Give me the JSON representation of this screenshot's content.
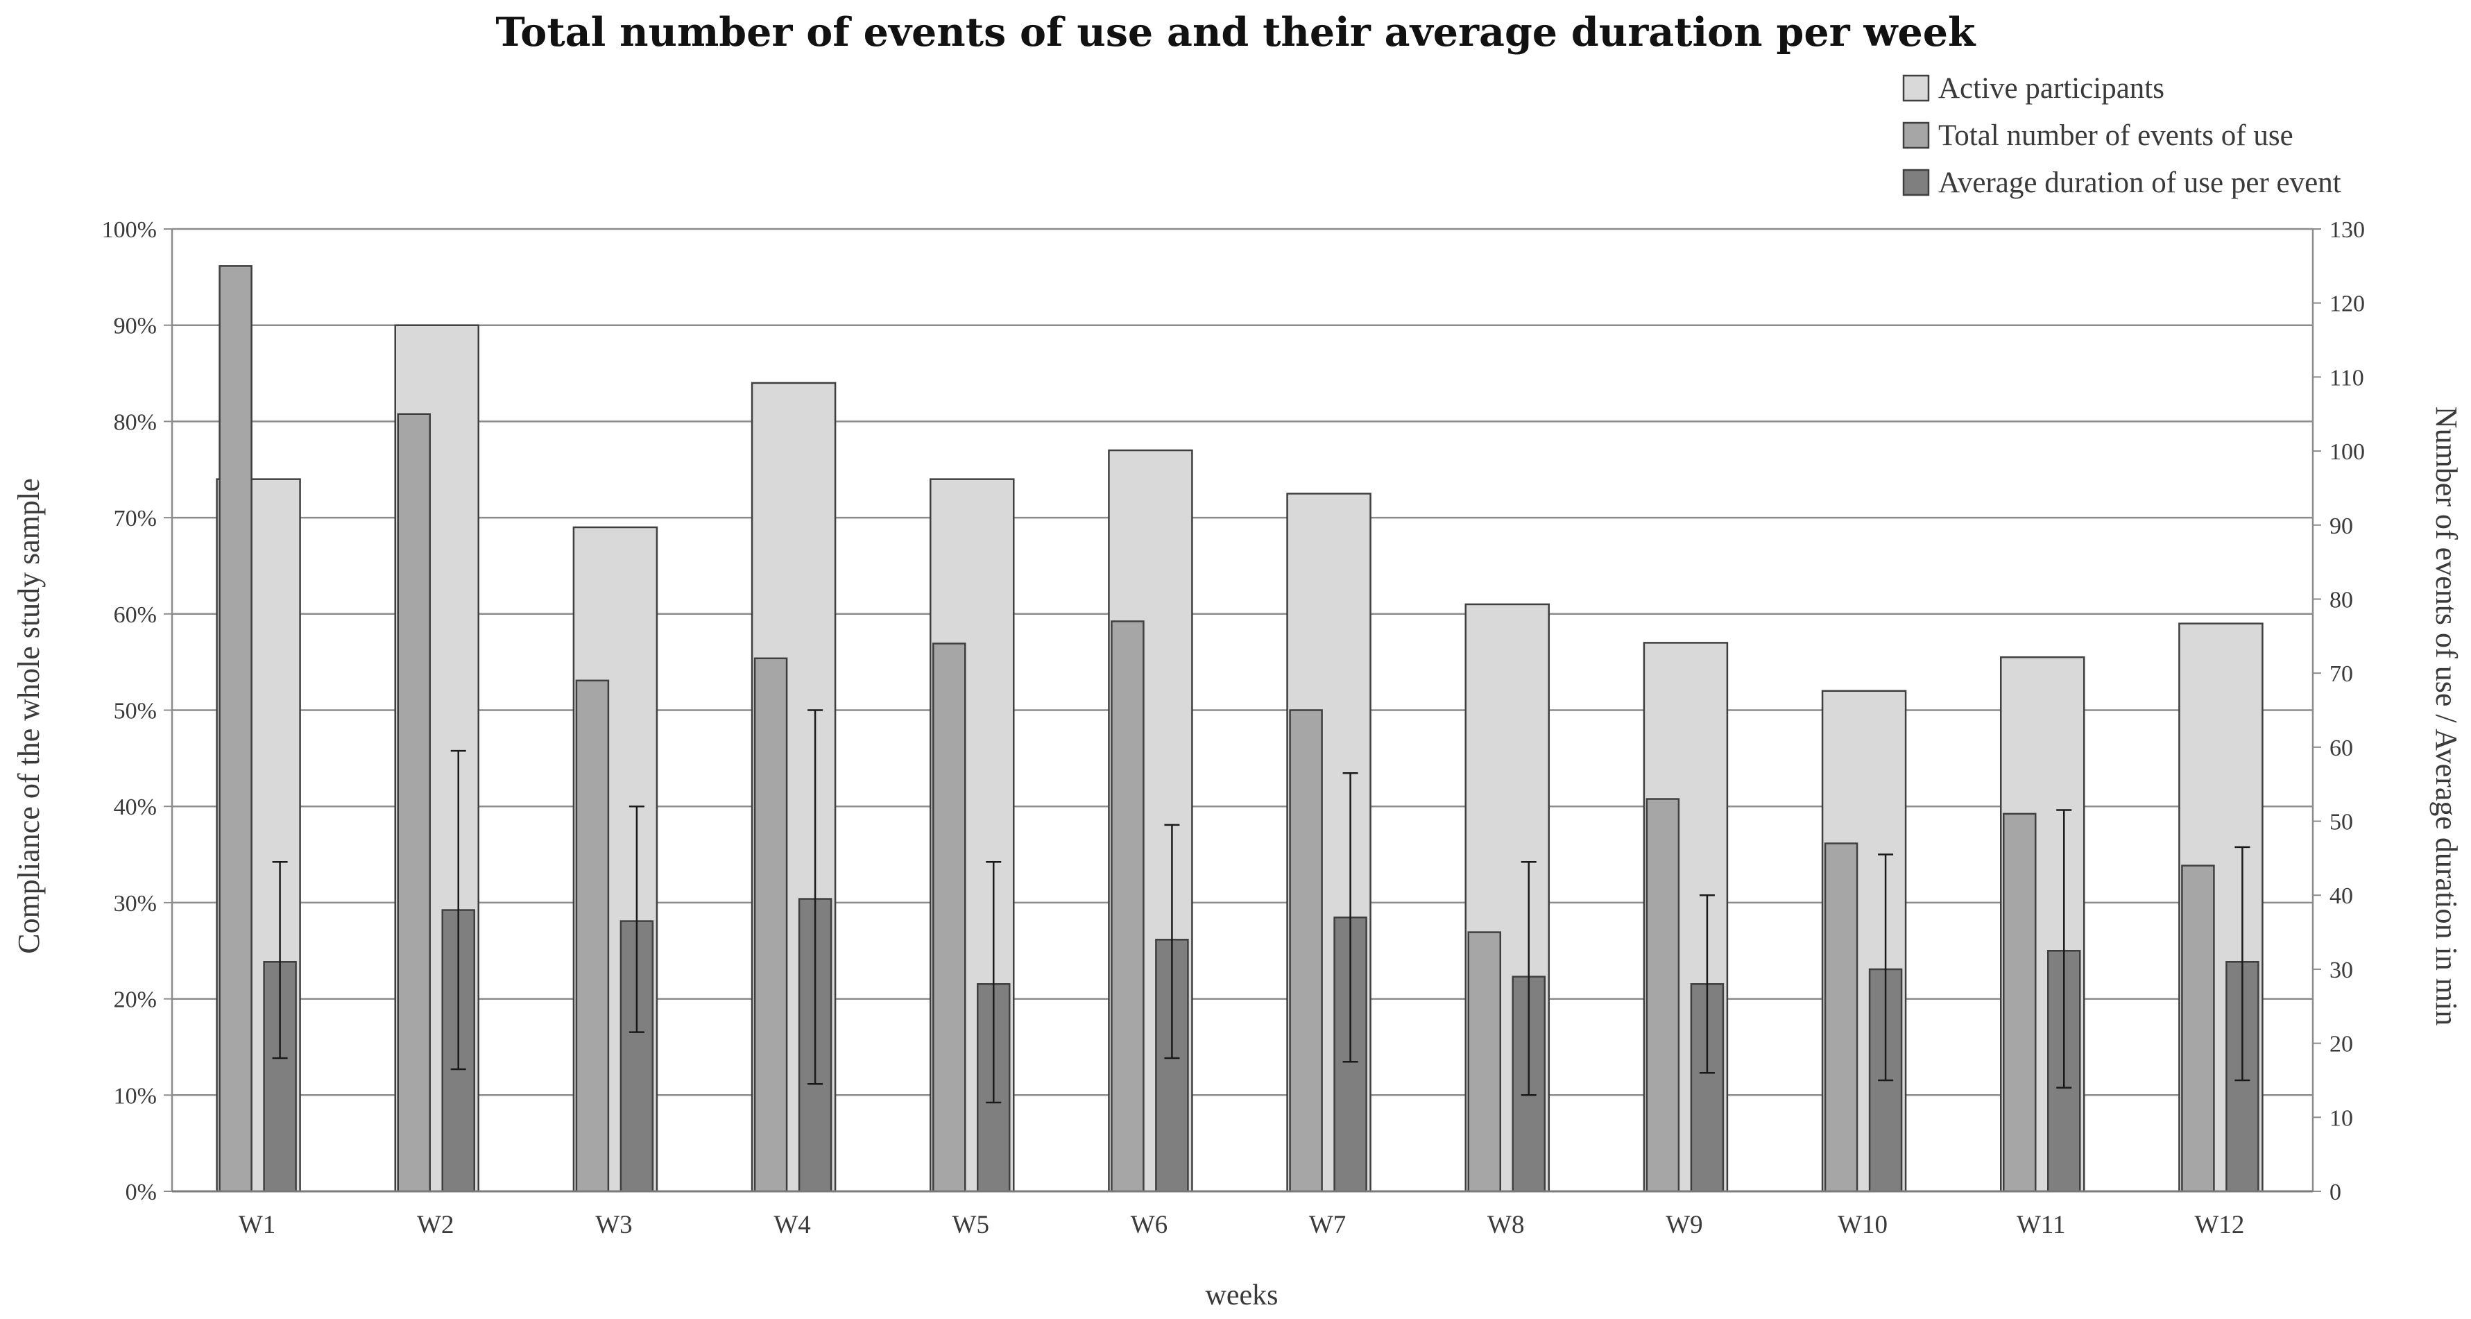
{
  "chart_data": {
    "type": "bar",
    "title": "Total number of events of use and their average duration per week",
    "xlabel": "weeks",
    "ylabel_left": "Compliance of the whole study sample",
    "ylabel_right": "Number of events of use  /  Average duration in min",
    "categories": [
      "W1",
      "W2",
      "W3",
      "W4",
      "W5",
      "W6",
      "W7",
      "W8",
      "W9",
      "W10",
      "W11",
      "W12"
    ],
    "left_axis": {
      "ylim": [
        0,
        100
      ],
      "ticks": [
        0,
        10,
        20,
        30,
        40,
        50,
        60,
        70,
        80,
        90,
        100
      ],
      "tick_labels": [
        "0%",
        "10%",
        "20%",
        "30%",
        "40%",
        "50%",
        "60%",
        "70%",
        "80%",
        "90%",
        "100%"
      ]
    },
    "right_axis": {
      "ylim": [
        0,
        130
      ],
      "ticks": [
        0,
        10,
        20,
        30,
        40,
        50,
        60,
        70,
        80,
        90,
        100,
        110,
        120,
        130
      ],
      "tick_labels": [
        "0",
        "10",
        "20",
        "30",
        "40",
        "50",
        "60",
        "70",
        "80",
        "90",
        "100",
        "110",
        "120",
        "130"
      ]
    },
    "grid": true,
    "legend_position": "top-right",
    "series": [
      {
        "name": "Active participants",
        "axis": "left",
        "color": "#d9d9d9",
        "values": [
          74,
          90,
          69,
          84,
          74,
          77,
          72.5,
          61,
          57,
          52,
          55.5,
          59
        ]
      },
      {
        "name": "Total number of events of use",
        "axis": "right",
        "color": "#a6a6a6",
        "values": [
          125,
          105,
          69,
          72,
          74,
          77,
          65,
          35,
          53,
          47,
          51,
          44
        ]
      },
      {
        "name": "Average duration of use per event",
        "axis": "right",
        "color": "#7f7f7f",
        "values": [
          31,
          38,
          36.5,
          39.5,
          28,
          34,
          37,
          29,
          28,
          30,
          32.5,
          31
        ],
        "error_low": [
          18,
          16.5,
          21.5,
          14.5,
          12,
          18,
          17.5,
          13,
          16,
          15,
          14,
          15
        ],
        "error_high": [
          44.5,
          59.5,
          52,
          65,
          44.5,
          49.5,
          56.5,
          44.5,
          40,
          45.5,
          51.5,
          46.5
        ]
      }
    ]
  }
}
